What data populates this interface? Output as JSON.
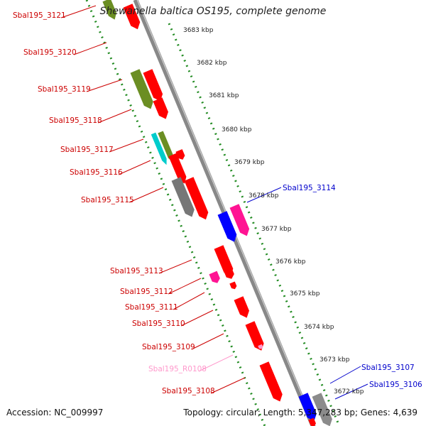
{
  "title": "Shewanella baltica OS195, complete genome",
  "accession": "Accession: NC_009997",
  "summary": "Topology: circular; Length: 5,347,283 bp; Genes: 4,639",
  "colors": {
    "cds": "#ff0000",
    "rna": "#ff99cc",
    "gray": "#777777",
    "olive": "#6b8e23",
    "cyan": "#00cccc",
    "blue": "#0000ff",
    "magenta": "#ff1493",
    "backbone": "#888888",
    "ticks": "#228b22",
    "label_red": "#cc0000",
    "label_blue": "#0000cc",
    "label_pink": "#ff99cc"
  },
  "scale_labels": [
    "3683 kbp",
    "3682 kbp",
    "3681 kbp",
    "3680 kbp",
    "3679 kbp",
    "3678 kbp",
    "3677 kbp",
    "3676 kbp",
    "3675 kbp",
    "3674 kbp",
    "3673 kbp",
    "3672 kbp"
  ],
  "left_labels": [
    {
      "text": "Sbal195_3121",
      "color": "label_red"
    },
    {
      "text": "Sbal195_3120",
      "color": "label_red"
    },
    {
      "text": "Sbal195_3119",
      "color": "label_red"
    },
    {
      "text": "Sbal195_3118",
      "color": "label_red"
    },
    {
      "text": "Sbal195_3117",
      "color": "label_red"
    },
    {
      "text": "Sbal195_3116",
      "color": "label_red"
    },
    {
      "text": "Sbal195_3115",
      "color": "label_red"
    },
    {
      "text": "Sbal195_3113",
      "color": "label_red"
    },
    {
      "text": "Sbal195_3112",
      "color": "label_red"
    },
    {
      "text": "Sbal195_3111",
      "color": "label_red"
    },
    {
      "text": "Sbal195_3110",
      "color": "label_red"
    },
    {
      "text": "Sbal195_3109",
      "color": "label_red"
    },
    {
      "text": "Sbal195_R0108",
      "color": "label_pink"
    },
    {
      "text": "Sbal195_3108",
      "color": "label_red"
    }
  ],
  "right_labels": [
    {
      "text": "Sbal195_3114",
      "color": "label_blue"
    },
    {
      "text": "Sbal195_3107",
      "color": "label_blue"
    },
    {
      "text": "Sbal195_3106",
      "color": "label_blue"
    }
  ],
  "features": [
    {
      "color": "olive"
    },
    {
      "color": "cds"
    },
    {
      "color": "olive"
    },
    {
      "color": "cds"
    },
    {
      "color": "cds"
    },
    {
      "color": "cyan"
    },
    {
      "color": "olive"
    },
    {
      "color": "cds"
    },
    {
      "color": "cds"
    },
    {
      "color": "gray"
    },
    {
      "color": "cds"
    },
    {
      "color": "blue"
    },
    {
      "color": "magenta"
    },
    {
      "color": "cds"
    },
    {
      "color": "magenta"
    },
    {
      "color": "cds"
    },
    {
      "color": "cds"
    },
    {
      "color": "cds"
    },
    {
      "color": "cds"
    },
    {
      "color": "rna"
    },
    {
      "color": "cds"
    },
    {
      "color": "blue"
    },
    {
      "color": "gray"
    },
    {
      "color": "cds"
    }
  ]
}
